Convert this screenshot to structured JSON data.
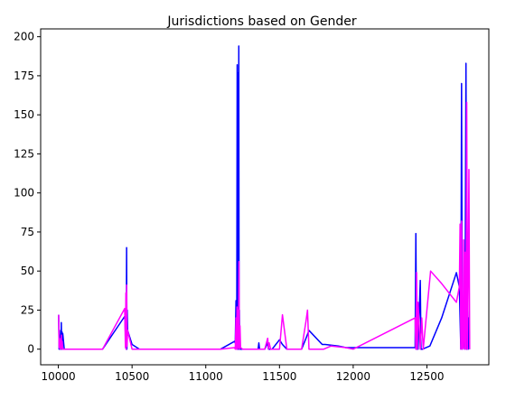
{
  "chart_data": {
    "type": "line",
    "title": "Jurisdictions based on Gender",
    "xlabel": "",
    "ylabel": "",
    "xlim": [
      9880,
      12920
    ],
    "ylim": [
      -10,
      205
    ],
    "grid": false,
    "x_ticks": [
      10000,
      10500,
      11000,
      11500,
      12000,
      12500
    ],
    "x_tick_labels": [
      "10000",
      "10500",
      "11000",
      "11500",
      "12000",
      "12500"
    ],
    "y_ticks": [
      0,
      25,
      50,
      75,
      100,
      125,
      150,
      175,
      200
    ],
    "y_tick_labels": [
      "0",
      "25",
      "50",
      "75",
      "100",
      "125",
      "150",
      "175",
      "200"
    ],
    "series": [
      {
        "color": "#0000ff",
        "x": [
          10002,
          10005,
          10008,
          10012,
          10015,
          10018,
          10020,
          10023,
          10025,
          10028,
          10030,
          10040,
          10100,
          10200,
          10300,
          10450,
          10460,
          10463,
          10465,
          10467,
          10470,
          10500,
          10550,
          10700,
          10900,
          11000,
          11100,
          11195,
          11200,
          11205,
          11210,
          11213,
          11216,
          11220,
          11222,
          11224,
          11226,
          11228,
          11230,
          11250,
          11300,
          11355,
          11360,
          11365,
          11370,
          11400,
          11420,
          11425,
          11430,
          11450,
          11500,
          11520,
          11550,
          11650,
          11680,
          11700,
          11790,
          11810,
          11900,
          11950,
          12100,
          12300,
          12420,
          12425,
          12430,
          12435,
          12440,
          12455,
          12460,
          12465,
          12470,
          12520,
          12600,
          12700,
          12720,
          12730,
          12735,
          12740,
          12745,
          12750,
          12755,
          12760,
          12765,
          12770,
          12775,
          12780,
          12785,
          12790
        ],
        "y": [
          22,
          0,
          12,
          0,
          9,
          0,
          17,
          0,
          11,
          0,
          10,
          0,
          0,
          0,
          0,
          21,
          0,
          65,
          0,
          25,
          12,
          3,
          0,
          0,
          0,
          0,
          0,
          5,
          4,
          31,
          0,
          182,
          0,
          177,
          0,
          194,
          0,
          25,
          0,
          0,
          0,
          0,
          4,
          0,
          0,
          0,
          4,
          0,
          0,
          0,
          6,
          3,
          0,
          0,
          7,
          12,
          3,
          3,
          2,
          1,
          1,
          1,
          1,
          74,
          0,
          20,
          0,
          44,
          0,
          0,
          0,
          2,
          20,
          49,
          40,
          0,
          170,
          0,
          1,
          30,
          0,
          50,
          183,
          0,
          60,
          0,
          20,
          0
        ]
      },
      {
        "color": "#ff00ff",
        "x": [
          10002,
          10005,
          10008,
          10012,
          10015,
          10018,
          10020,
          10023,
          10026,
          10030,
          10050,
          10100,
          10200,
          10300,
          10450,
          10455,
          10458,
          10460,
          10463,
          10466,
          10470,
          10500,
          10550,
          10700,
          10900,
          11000,
          11100,
          11195,
          11200,
          11205,
          11208,
          11212,
          11215,
          11218,
          11222,
          11225,
          11228,
          11232,
          11236,
          11250,
          11300,
          11400,
          11420,
          11425,
          11430,
          11440,
          11450,
          11500,
          11520,
          11550,
          11650,
          11680,
          11690,
          11700,
          11800,
          11850,
          11950,
          12000,
          12420,
          12425,
          12430,
          12435,
          12440,
          12455,
          12465,
          12475,
          12525,
          12600,
          12700,
          12720,
          12725,
          12730,
          12735,
          12740,
          12745,
          12750,
          12755,
          12760,
          12765,
          12770,
          12775,
          12780,
          12785,
          12790
        ],
        "y": [
          22,
          1,
          7,
          0,
          6,
          1,
          9,
          0,
          5,
          0,
          0,
          0,
          0,
          0,
          26,
          1,
          36,
          0,
          41,
          2,
          12,
          0,
          0,
          0,
          0,
          0,
          0,
          1,
          0,
          20,
          0,
          27,
          0,
          25,
          1,
          56,
          0,
          15,
          1,
          0,
          0,
          0,
          7,
          0,
          4,
          0,
          0,
          0,
          22,
          0,
          0,
          18,
          25,
          0,
          0,
          2,
          1,
          0,
          20,
          0,
          49,
          0,
          30,
          0,
          20,
          0,
          50,
          42,
          30,
          40,
          80,
          0,
          82,
          0,
          1,
          70,
          0,
          62,
          0,
          158,
          0,
          50,
          115,
          0
        ]
      }
    ]
  }
}
